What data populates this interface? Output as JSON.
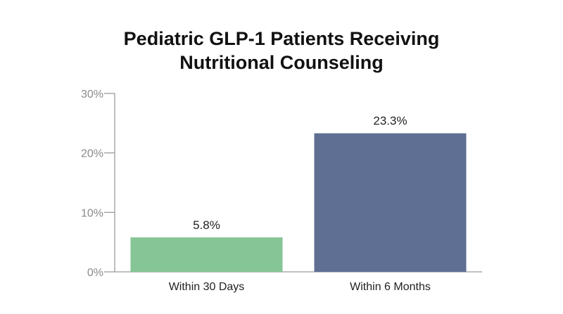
{
  "chart_data": {
    "type": "bar",
    "title_lines": [
      "Pediatric GLP-1 Patients Receiving",
      "Nutritional Counseling"
    ],
    "categories": [
      "Within 30 Days",
      "Within 6 Months"
    ],
    "values": [
      5.8,
      23.3
    ],
    "value_labels": [
      "5.8%",
      "23.3%"
    ],
    "colors": [
      "#86c595",
      "#5f6e93"
    ],
    "ylim": [
      0,
      30
    ],
    "yticks": [
      0,
      10,
      20,
      30
    ],
    "ytick_labels": [
      "0%",
      "10%",
      "20%",
      "30%"
    ],
    "grid": false,
    "legend": "none"
  }
}
